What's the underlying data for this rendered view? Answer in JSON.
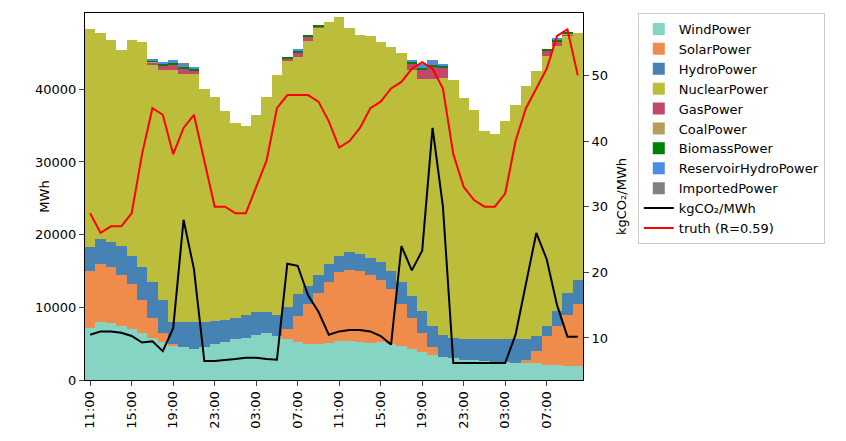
{
  "chart_data": {
    "type": "bar",
    "stacked": true,
    "grid": false,
    "legend": "right",
    "ylabel": "MWh",
    "y2label": "kgCO₂/MWh",
    "ylim": [
      0,
      50500
    ],
    "yticks": [
      0,
      10000,
      20000,
      30000,
      40000
    ],
    "y2lim": [
      3.6,
      59.5
    ],
    "y2ticks": [
      10,
      20,
      30,
      40,
      50
    ],
    "categories": [
      "11:00",
      null,
      null,
      null,
      "15:00",
      null,
      null,
      null,
      "19:00",
      null,
      null,
      null,
      "23:00",
      null,
      null,
      null,
      "03:00",
      null,
      null,
      null,
      "07:00",
      null,
      null,
      null,
      "11:00",
      null,
      null,
      null,
      "15:00",
      null,
      null,
      null,
      "19:00",
      null,
      null,
      null,
      "23:00",
      null,
      null,
      null,
      "03:00",
      null,
      null,
      null,
      "07:00",
      null,
      null,
      null
    ],
    "series": [
      {
        "name": "WindPower",
        "type": "bar",
        "color": "#86d4c4",
        "values": [
          7200,
          8000,
          7800,
          7500,
          7000,
          6500,
          5800,
          5200,
          4800,
          4500,
          4300,
          4600,
          4900,
          5200,
          5600,
          5800,
          6200,
          6400,
          6000,
          5700,
          5200,
          4900,
          5000,
          5100,
          5400,
          5400,
          5200,
          5100,
          5200,
          5000,
          4700,
          4300,
          3900,
          3500,
          3200,
          3000,
          2800,
          2700,
          2600,
          2500,
          2500,
          2400,
          2300,
          2300,
          2100,
          2000,
          1900,
          1900
        ]
      },
      {
        "name": "SolarPower",
        "type": "bar",
        "color": "#ef8b4b",
        "values": [
          7800,
          8000,
          7800,
          7000,
          6200,
          4500,
          2700,
          1300,
          200,
          0,
          0,
          0,
          0,
          0,
          0,
          0,
          0,
          0,
          0,
          1300,
          3600,
          5600,
          7000,
          8400,
          9400,
          9800,
          9800,
          9400,
          8600,
          7500,
          5800,
          4200,
          2600,
          1000,
          0,
          0,
          0,
          0,
          0,
          0,
          0,
          0,
          500,
          1700,
          3900,
          5500,
          7100,
          8600
        ]
      },
      {
        "name": "HydroPower",
        "type": "bar",
        "color": "#4682b4",
        "values": [
          3300,
          3400,
          3400,
          4000,
          3800,
          4500,
          5000,
          4500,
          3000,
          3500,
          3700,
          3400,
          3200,
          3100,
          3000,
          3100,
          3100,
          3000,
          3000,
          3000,
          3000,
          2500,
          2500,
          2500,
          2200,
          2400,
          2400,
          2300,
          2500,
          2500,
          3000,
          3000,
          3000,
          3000,
          3000,
          2800,
          2900,
          3000,
          3100,
          3200,
          3200,
          3300,
          2900,
          2000,
          1500,
          2000,
          3000,
          3200
        ]
      },
      {
        "name": "NuclearPower",
        "type": "bar",
        "color": "#bcbd3a",
        "values": [
          30000,
          28400,
          27800,
          26900,
          29800,
          31000,
          29800,
          31700,
          34700,
          34100,
          34100,
          32000,
          30900,
          28700,
          26800,
          26100,
          27200,
          29600,
          33000,
          33900,
          32600,
          33700,
          33900,
          33300,
          32900,
          30900,
          30100,
          30600,
          30200,
          30800,
          31500,
          31200,
          31900,
          33900,
          35300,
          35500,
          33100,
          31500,
          28500,
          28100,
          30000,
          32100,
          34800,
          36500,
          37100,
          36500,
          35300,
          34100
        ]
      },
      {
        "name": "GasPower",
        "type": "bar",
        "color": "#c2476b",
        "values": [
          0,
          0,
          0,
          0,
          0,
          0,
          400,
          600,
          700,
          800,
          500,
          0,
          0,
          0,
          0,
          0,
          0,
          0,
          0,
          400,
          700,
          600,
          300,
          0,
          0,
          0,
          0,
          0,
          0,
          0,
          0,
          800,
          1300,
          1800,
          1500,
          0,
          0,
          0,
          0,
          0,
          0,
          0,
          0,
          0,
          700,
          600,
          300,
          0
        ]
      },
      {
        "name": "CoalPower",
        "type": "bar",
        "color": "#b89c5c",
        "values": [
          0,
          0,
          0,
          0,
          0,
          0,
          100,
          0,
          0,
          0,
          0,
          0,
          0,
          0,
          0,
          0,
          0,
          0,
          0,
          0,
          0,
          0,
          0,
          0,
          0,
          0,
          0,
          0,
          0,
          0,
          0,
          0,
          0,
          0,
          0,
          0,
          0,
          0,
          0,
          0,
          0,
          0,
          0,
          0,
          0,
          0,
          100,
          0
        ]
      },
      {
        "name": "BiomassPower",
        "type": "bar",
        "color": "#008000",
        "values": [
          0,
          0,
          0,
          0,
          0,
          0,
          200,
          200,
          200,
          200,
          200,
          0,
          0,
          0,
          0,
          0,
          0,
          0,
          0,
          200,
          200,
          200,
          100,
          0,
          0,
          0,
          0,
          0,
          0,
          0,
          0,
          200,
          200,
          200,
          200,
          0,
          0,
          0,
          0,
          0,
          0,
          0,
          0,
          0,
          200,
          200,
          100,
          0
        ]
      },
      {
        "name": "ReservoirHydroPower",
        "type": "bar",
        "color": "#4a8ce6",
        "values": [
          0,
          0,
          0,
          0,
          0,
          0,
          200,
          300,
          400,
          300,
          200,
          0,
          0,
          0,
          0,
          0,
          0,
          0,
          0,
          0,
          200,
          0,
          0,
          0,
          0,
          0,
          0,
          0,
          0,
          0,
          0,
          300,
          600,
          500,
          300,
          0,
          0,
          0,
          0,
          0,
          0,
          0,
          0,
          0,
          0,
          200,
          0,
          0
        ]
      },
      {
        "name": "ImportedPower",
        "type": "bar",
        "color": "#808080",
        "values": [
          0,
          0,
          0,
          0,
          0,
          0,
          0,
          0,
          0,
          100,
          0,
          0,
          0,
          0,
          0,
          0,
          0,
          0,
          0,
          0,
          0,
          0,
          0,
          0,
          0,
          0,
          0,
          0,
          0,
          0,
          0,
          0,
          0,
          100,
          0,
          0,
          0,
          0,
          0,
          0,
          0,
          0,
          0,
          0,
          0,
          0,
          0,
          0
        ]
      },
      {
        "name": "kgCO₂/MWh",
        "type": "line",
        "axis": "y2",
        "color": "#000000",
        "values": [
          10.5,
          11,
          11,
          10.8,
          10.3,
          9.3,
          9.5,
          8,
          11.5,
          28,
          20.5,
          6.5,
          6.5,
          6.6,
          6.8,
          7,
          7,
          6.8,
          6.7,
          21.3,
          21,
          16.5,
          14,
          10.5,
          11,
          11.2,
          11.2,
          11,
          10.3,
          9,
          24,
          20.3,
          23.3,
          42,
          30,
          6.2,
          6.2,
          6.2,
          6.3,
          6.3,
          6.2,
          10.5,
          18,
          26,
          22,
          15,
          10.2,
          10.2
        ]
      },
      {
        "name": "truth (R=0.59)",
        "type": "line",
        "axis": "y2",
        "color": "#ff0000",
        "values": [
          29,
          26,
          27,
          27,
          29,
          38,
          45,
          44,
          38,
          42,
          44,
          37,
          30,
          30,
          29,
          29,
          33,
          37,
          45,
          47,
          47,
          47,
          46,
          43,
          39,
          40,
          42,
          45,
          46,
          48,
          49,
          51,
          52,
          51,
          48,
          38,
          33,
          31,
          30,
          30,
          32,
          40,
          45,
          48,
          51,
          56,
          57,
          50
        ]
      }
    ]
  }
}
